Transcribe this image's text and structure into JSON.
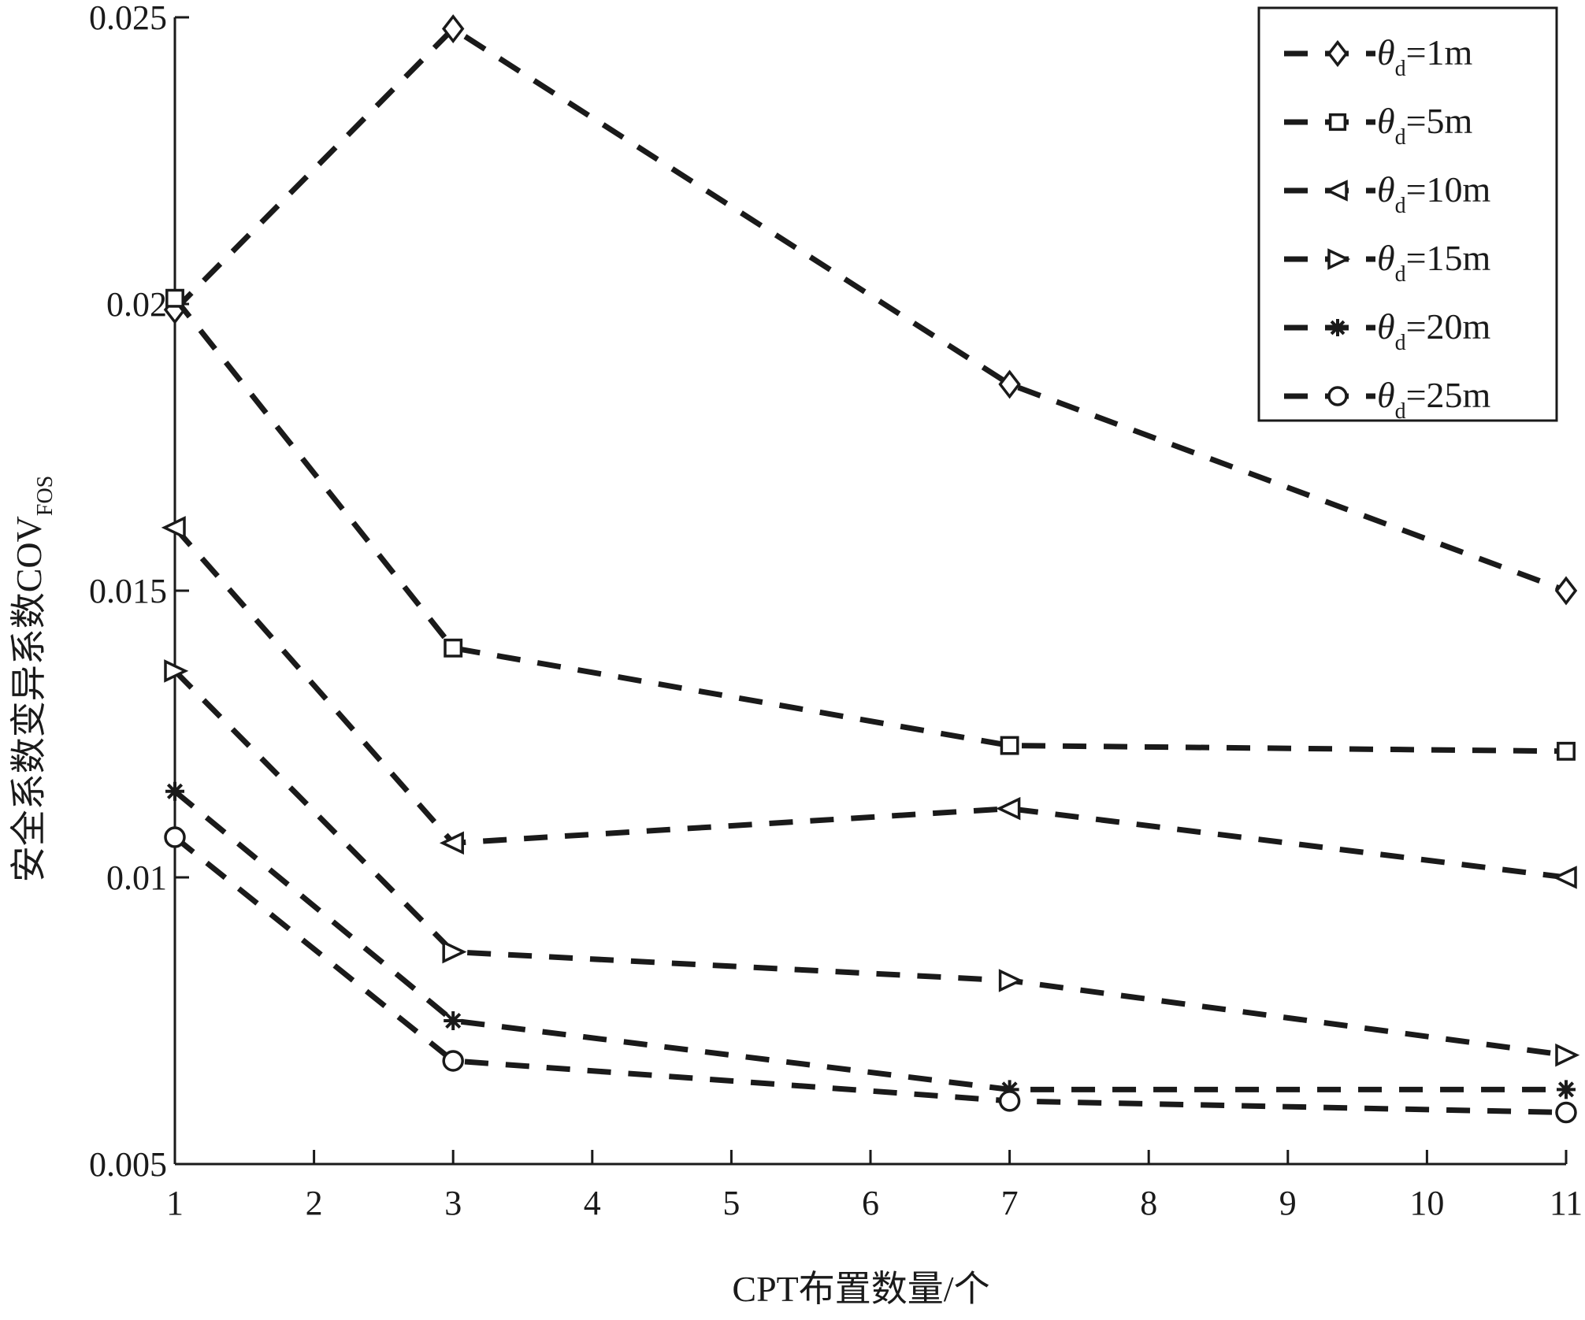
{
  "chart_data": {
    "type": "line",
    "title": "",
    "xlabel": "CPT布置数量/个",
    "ylabel": "安全系数变异系数COV",
    "ylabel_subscript": "FOS",
    "xlim": [
      1,
      11
    ],
    "ylim": [
      0.005,
      0.025
    ],
    "x_ticks": [
      "1",
      "2",
      "3",
      "4",
      "5",
      "6",
      "7",
      "8",
      "9",
      "10",
      "11"
    ],
    "y_ticks": [
      "0.005",
      "0.01",
      "0.015",
      "0.02",
      "0.025"
    ],
    "y_tick_values": [
      0.005,
      0.01,
      0.015,
      0.02,
      0.025
    ],
    "legend_position": "top-right",
    "grid": false,
    "x": [
      1,
      3,
      7,
      11
    ],
    "series": [
      {
        "name": "θd=1m",
        "marker": "diamond",
        "values": [
          0.0199,
          0.0248,
          0.0186,
          0.015
        ]
      },
      {
        "name": "θd=5m",
        "marker": "square",
        "values": [
          0.0201,
          0.014,
          0.0123,
          0.0122
        ]
      },
      {
        "name": "θd=10m",
        "marker": "triangle-left",
        "values": [
          0.0161,
          0.0106,
          0.0112,
          0.01
        ]
      },
      {
        "name": "θd=15m",
        "marker": "triangle-right",
        "values": [
          0.0136,
          0.0087,
          0.0082,
          0.0069
        ]
      },
      {
        "name": "θd=20m",
        "marker": "star",
        "values": [
          0.0115,
          0.0075,
          0.0063,
          0.0063
        ]
      },
      {
        "name": "θd=25m",
        "marker": "circle",
        "values": [
          0.0107,
          0.0068,
          0.0061,
          0.0059
        ]
      }
    ],
    "legend": [
      {
        "theta": "θ",
        "sub": "d",
        "value": "=1m"
      },
      {
        "theta": "θ",
        "sub": "d",
        "value": "=5m"
      },
      {
        "theta": "θ",
        "sub": "d",
        "value": "=10m"
      },
      {
        "theta": "θ",
        "sub": "d",
        "value": "=15m"
      },
      {
        "theta": "θ",
        "sub": "d",
        "value": "=20m"
      },
      {
        "theta": "θ",
        "sub": "d",
        "value": "=25m"
      }
    ]
  }
}
